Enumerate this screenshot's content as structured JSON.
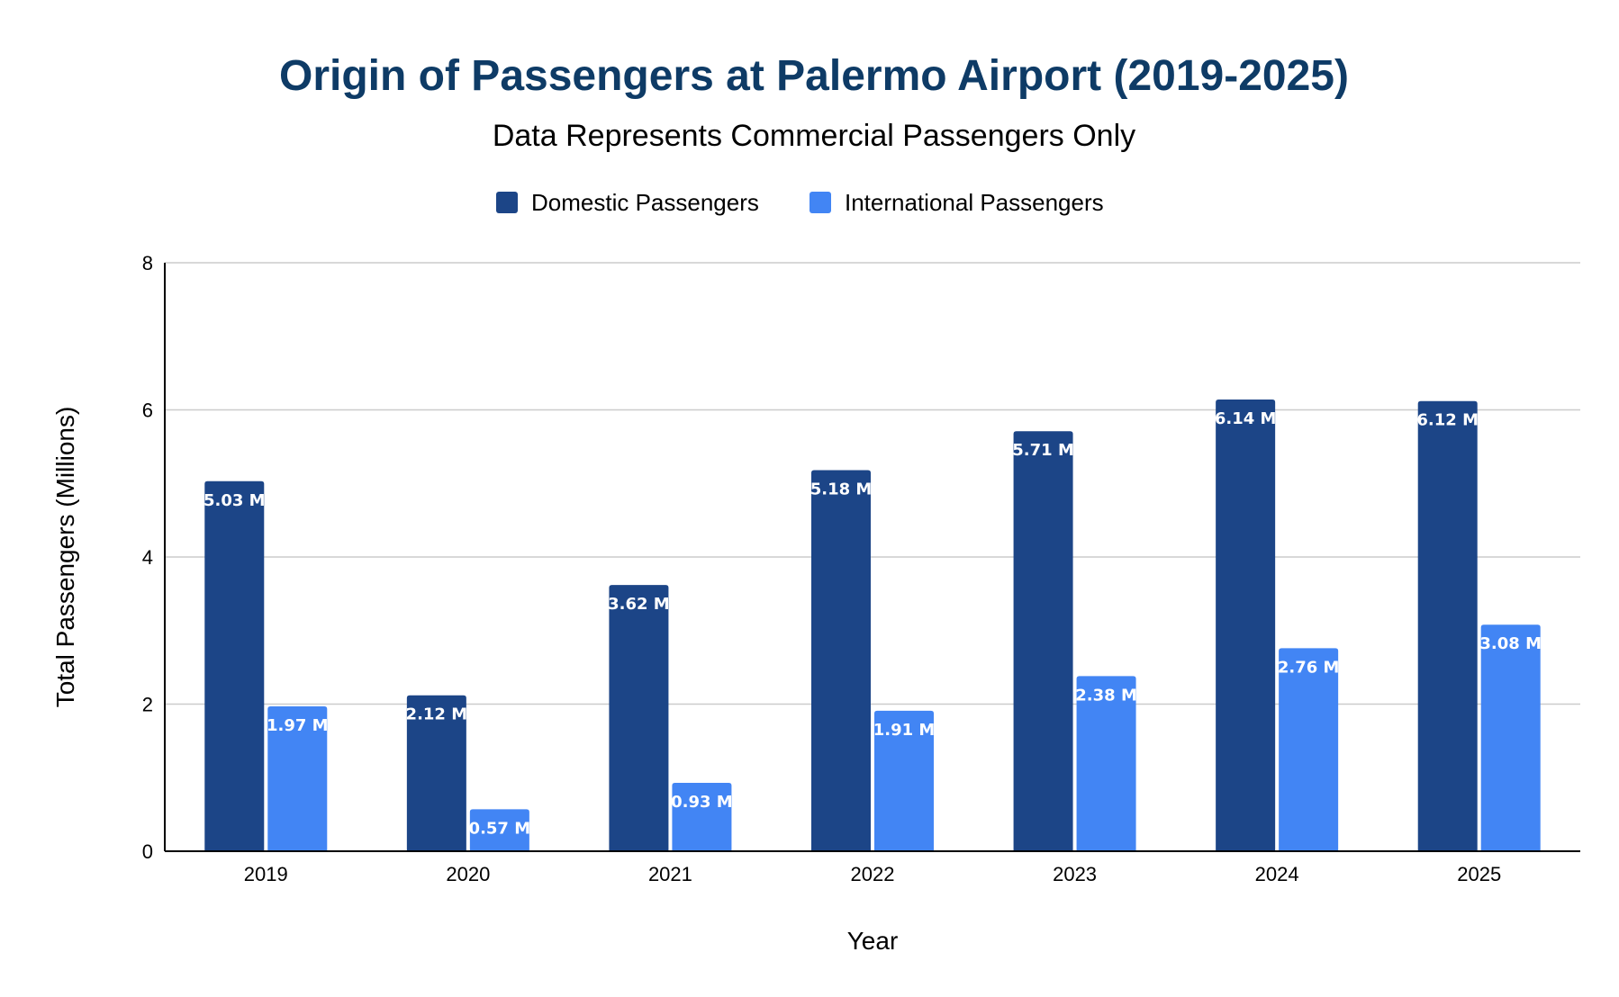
{
  "chart_data": {
    "type": "bar",
    "title": "Origin of Passengers at Palermo Airport (2019-2025)",
    "subtitle": "Data Represents Commercial Passengers Only",
    "xlabel": "Year",
    "ylabel": "Total Passengers (Millions)",
    "categories": [
      "2019",
      "2020",
      "2021",
      "2022",
      "2023",
      "2024",
      "2025"
    ],
    "ylim": [
      0,
      8
    ],
    "yticks": [
      0,
      2,
      4,
      6,
      8
    ],
    "grid": true,
    "legend_position": "top-center",
    "series": [
      {
        "name": "Domestic Passengers",
        "color": "#1c4587",
        "values": [
          5.03,
          2.12,
          3.62,
          5.18,
          5.71,
          6.14,
          6.12
        ],
        "labels": [
          "5.03 M",
          "2.12 M",
          "3.62 M",
          "5.18 M",
          "5.71 M",
          "6.14 M",
          "6.12 M"
        ]
      },
      {
        "name": "International Passengers",
        "color": "#4285f4",
        "values": [
          1.97,
          0.57,
          0.93,
          1.91,
          2.38,
          2.76,
          3.08
        ],
        "labels": [
          "1.97 M",
          "0.57 M",
          "0.93 M",
          "1.91 M",
          "2.38 M",
          "2.76 M",
          "3.08 M"
        ]
      }
    ],
    "colors": {
      "title": "#0e3b66",
      "text": "#000000",
      "gridline": "#cccccc",
      "axis": "#000000",
      "data_label": "#ffffff"
    }
  }
}
